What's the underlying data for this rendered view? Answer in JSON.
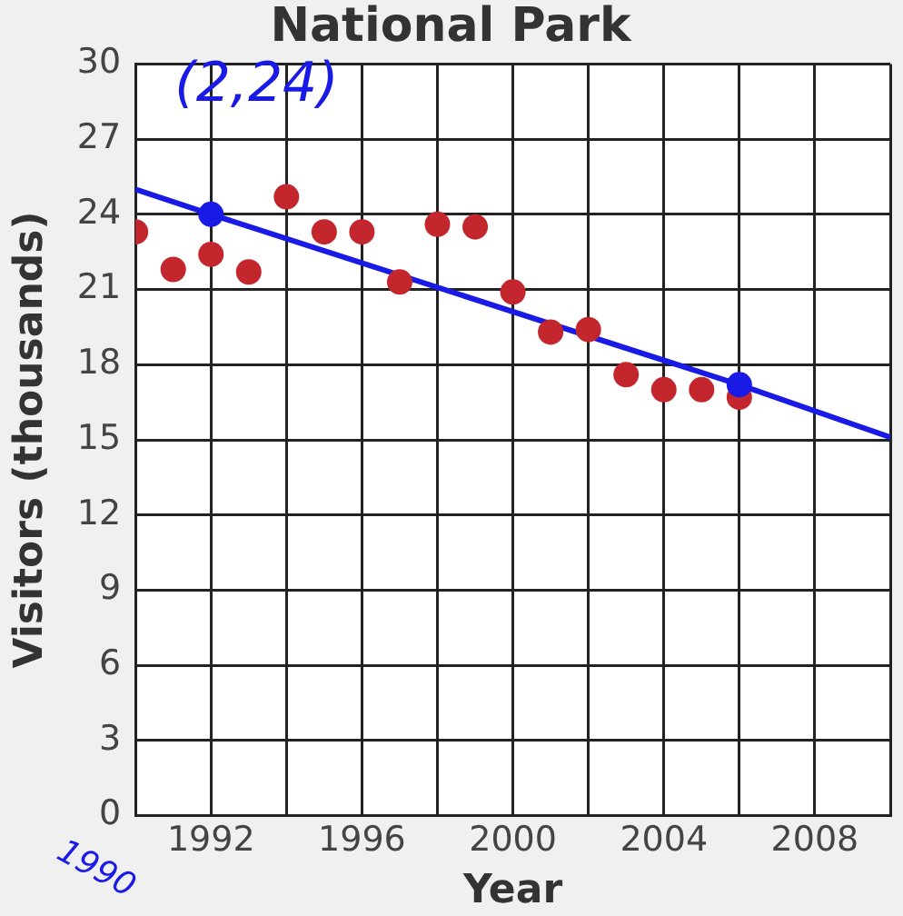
{
  "chart_data": {
    "type": "scatter",
    "title": "National Park",
    "xlabel": "Year",
    "ylabel": "Visitors (thousands)",
    "xlim": [
      1990,
      2010
    ],
    "xticks": [
      {
        "value": 1990,
        "label": null
      },
      1992,
      {
        "value": 1994,
        "label": null
      },
      1996,
      {
        "value": 1998,
        "label": null
      },
      2000,
      {
        "value": 2002,
        "label": null
      },
      2004,
      {
        "value": 2006,
        "label": null
      },
      2008,
      {
        "value": 2010,
        "label": null
      }
    ],
    "ylim": [
      0,
      30
    ],
    "yticks": [
      0,
      3,
      6,
      9,
      12,
      15,
      18,
      21,
      24,
      27,
      30
    ],
    "grid": true,
    "legend": false,
    "marker": "circle",
    "series": [
      {
        "color": "#c4262e",
        "x": [
          1990,
          1991,
          1992,
          1993,
          1994,
          1995,
          1996,
          1997,
          1998,
          1999,
          2000,
          2001,
          2002,
          2003,
          2004,
          2005,
          2006
        ],
        "values": [
          23.3,
          21.8,
          22.4,
          21.7,
          24.7,
          23.3,
          23.3,
          21.3,
          23.6,
          23.5,
          20.9,
          19.3,
          19.4,
          17.6,
          17.0,
          17.0,
          16.7
        ]
      },
      {
        "type": "line",
        "color": "#1a1ae6",
        "marker": "none",
        "x": [
          1990,
          1992,
          2006,
          2010
        ],
        "values": [
          25.0,
          24,
          17.2,
          15.1
        ]
      },
      {
        "color": "#1a1ae6",
        "x": [
          1992,
          2006
        ],
        "values": [
          24,
          17.2
        ]
      }
    ],
    "annotations": [
      {
        "text": "(2,24)",
        "x": 1992,
        "y": 24
      },
      "1990"
    ]
  }
}
